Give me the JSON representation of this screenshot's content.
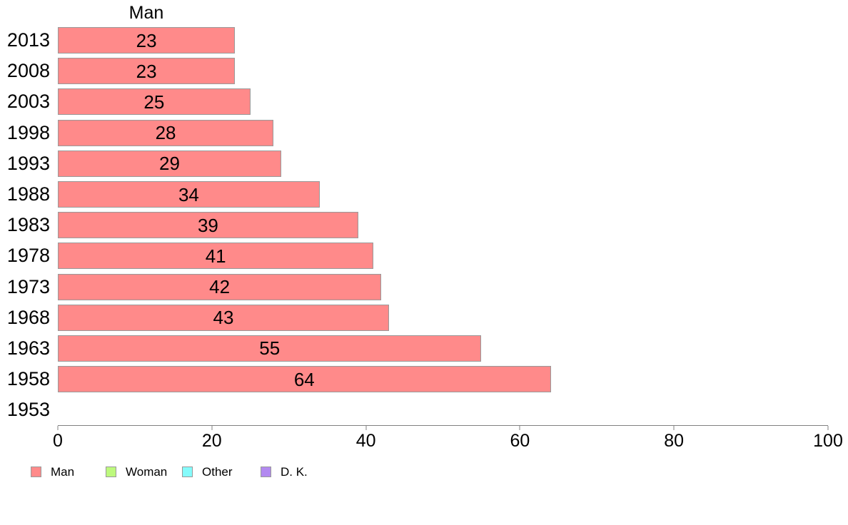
{
  "style": {
    "background": "#ffffff",
    "text_color": "#000000",
    "axis_color": "#808080",
    "bar_fill": "#ff8a8a",
    "bar_border": "#999999"
  },
  "chart_data": {
    "type": "bar",
    "orientation": "horizontal",
    "title": "Man",
    "categories": [
      "2013",
      "2008",
      "2003",
      "1998",
      "1993",
      "1988",
      "1983",
      "1978",
      "1973",
      "1968",
      "1963",
      "1958",
      "1953"
    ],
    "series": [
      {
        "name": "Man",
        "color": "#ff8a8a",
        "values": [
          23,
          23,
          25,
          28,
          29,
          34,
          39,
          41,
          42,
          43,
          55,
          64,
          null
        ]
      }
    ],
    "xlim": [
      0,
      100
    ],
    "x_ticks": [
      0,
      20,
      40,
      60,
      80,
      100
    ],
    "grid": false,
    "legend_position": "bottom-left",
    "legend": [
      {
        "label": "Man",
        "color": "#ff8a8a"
      },
      {
        "label": "Woman",
        "color": "#bdf97d"
      },
      {
        "label": "Other",
        "color": "#85fbfb"
      },
      {
        "label": "D. K.",
        "color": "#b289f0"
      }
    ]
  }
}
